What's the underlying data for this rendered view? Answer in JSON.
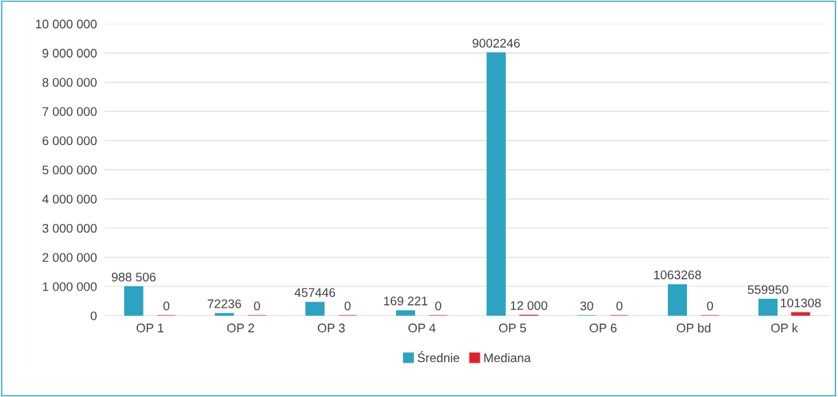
{
  "chart_data": {
    "type": "bar",
    "categories": [
      "OP 1",
      "OP 2",
      "OP 3",
      "OP 4",
      "OP 5",
      "OP 6",
      "OP bd",
      "OP k"
    ],
    "series": [
      {
        "name": "Średnie",
        "color": "#2ba3c1",
        "values": [
          988506,
          72236,
          457446,
          169221,
          9002246,
          30,
          1063268,
          559950
        ],
        "value_labels": [
          "988 506",
          "72236",
          "457446",
          "169 221",
          "9002246",
          "30",
          "1063268",
          "559950"
        ]
      },
      {
        "name": "Mediana",
        "color": "#e3202a",
        "values": [
          0,
          0,
          0,
          0,
          12000,
          0,
          0,
          101308
        ],
        "value_labels": [
          "0",
          "0",
          "0",
          "0",
          "12 000",
          "0",
          "0",
          "101308"
        ]
      }
    ],
    "ylim": [
      0,
      10000000
    ],
    "yticks": [
      0,
      {
        "value": 1000000,
        "label": "1 000 000"
      },
      {
        "value": 2000000,
        "label": "2 000 000"
      },
      {
        "value": 3000000,
        "label": "3 000 000"
      },
      {
        "value": 4000000,
        "label": "4 000 000"
      },
      {
        "value": 5000000,
        "label": "5 000 000"
      },
      {
        "value": 6000000,
        "label": "6 000 000"
      },
      {
        "value": 7000000,
        "label": "7 000 000"
      },
      {
        "value": 8000000,
        "label": "8 000 000"
      },
      {
        "value": 9000000,
        "label": "9 000 000"
      },
      {
        "value": 10000000,
        "label": "10 000 000"
      }
    ],
    "grid": "y",
    "legend": "bottom"
  }
}
